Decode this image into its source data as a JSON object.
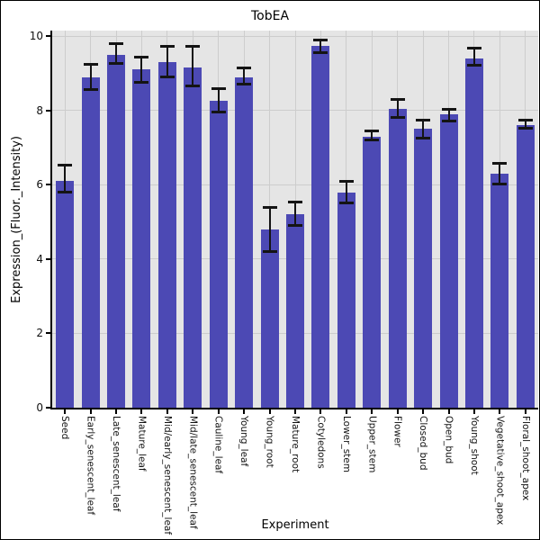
{
  "chart_data": {
    "type": "bar",
    "title": "TobEA",
    "xlabel": "Experiment",
    "ylabel": "Expression_(Fluor._Intensity)",
    "ylim": [
      0,
      10.15
    ],
    "yticks": [
      0,
      2,
      4,
      6,
      8,
      10
    ],
    "grid": true,
    "legend": "none",
    "plot_bg_color": "#e5e5e5",
    "grid_color": "#cdcdcd",
    "bar_color": "#4c49b4",
    "error_bar_color": "#141414",
    "categories": [
      "Seed",
      "Early_senescent_leaf",
      "Late_senescent_leaf",
      "Mature_leaf",
      "Mid/early_senescent_leaf",
      "Mid/late_senescent_leaf",
      "Cauline_leaf",
      "Young_leaf",
      "Young_root",
      "Mature_root",
      "Cotyledons",
      "Lower_stem",
      "Upper_stem",
      "Flower",
      "Closed_bud",
      "Open_bud",
      "Young_shoot",
      "Vegetative_shoot_apex",
      "Floral_shoot_apex"
    ],
    "values": [
      6.1,
      8.9,
      9.5,
      9.1,
      9.3,
      9.15,
      8.25,
      8.9,
      4.8,
      5.2,
      9.75,
      5.8,
      7.3,
      8.05,
      7.5,
      7.9,
      9.4,
      6.3,
      7.6
    ],
    "error_low": [
      5.8,
      8.55,
      9.25,
      8.75,
      8.9,
      8.65,
      7.95,
      8.7,
      4.2,
      4.9,
      9.55,
      5.5,
      7.2,
      7.8,
      7.25,
      7.7,
      9.2,
      6.0,
      7.5
    ],
    "error_high": [
      6.55,
      9.25,
      9.8,
      9.45,
      9.75,
      9.75,
      8.6,
      9.15,
      5.4,
      5.55,
      9.9,
      6.1,
      7.45,
      8.3,
      7.75,
      8.05,
      9.7,
      6.6,
      7.75
    ]
  }
}
